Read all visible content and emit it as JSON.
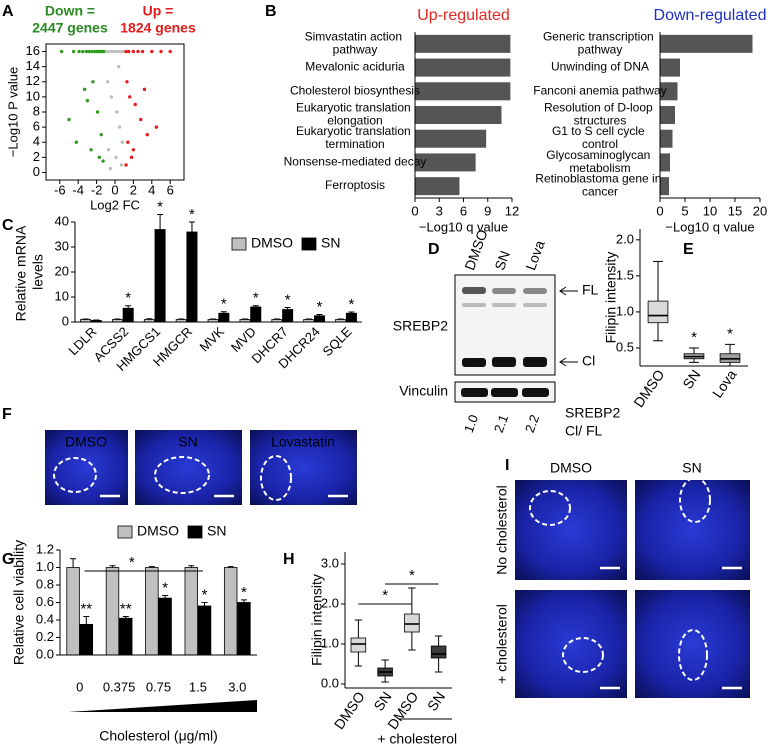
{
  "panel_labels": [
    "A",
    "B",
    "C",
    "D",
    "E",
    "F",
    "G",
    "H",
    "I"
  ],
  "chart_data": [
    {
      "type": "scatter",
      "xlabel": "Log2 FC",
      "ylabel": "−Log10 P value",
      "xlim": [
        -7.5,
        7.5
      ],
      "ylim": [
        -1,
        17
      ],
      "xticks": [
        -6,
        -4,
        -2,
        0,
        2,
        4,
        6
      ],
      "yticks": [
        0,
        2,
        4,
        6,
        8,
        10,
        12,
        14,
        16
      ],
      "annotations": [
        {
          "text": "Down =",
          "color": "#2a8a22"
        },
        {
          "text": "2447 genes",
          "color": "#2a8a22"
        },
        {
          "text": "Up =",
          "color": "#e31a1c"
        },
        {
          "text": "1824 genes",
          "color": "#e31a1c"
        }
      ],
      "series": [
        {
          "color": "#2e9a1f",
          "x": [
            -5.8,
            -4.5,
            -3.9,
            -3.5,
            -3.1,
            -2.8,
            -2.5,
            -2.2,
            -2.0,
            -1.8,
            -1.6,
            -1.4,
            -1.3,
            -1.2,
            -3.0,
            -2.4,
            -1.9,
            -1.5,
            -4.2,
            -2.6,
            -1.7,
            -1.3,
            -5.0,
            -3.3
          ],
          "y": [
            16,
            16,
            16,
            16,
            16,
            16,
            16,
            16,
            16,
            16,
            16,
            16,
            16,
            16,
            9.5,
            12,
            8,
            5,
            4,
            3,
            2,
            1.5,
            7,
            11
          ]
        },
        {
          "color": "#bdbdbd",
          "x": [
            -0.9,
            -0.6,
            -0.3,
            0,
            0.3,
            0.6,
            0.9,
            -0.8,
            -0.4,
            0.2,
            0.5,
            0.8,
            -0.7,
            0.1,
            0.7,
            -0.5,
            0.4
          ],
          "y": [
            16,
            16,
            16,
            16,
            16,
            16,
            16,
            12,
            10,
            8,
            6,
            4,
            3,
            2,
            1,
            0.5,
            14
          ]
        },
        {
          "color": "#e41a1c",
          "x": [
            1.2,
            1.5,
            2,
            2.5,
            3,
            4,
            5,
            6,
            1.3,
            1.6,
            2.2,
            2.8,
            3.5,
            1.4,
            2.0,
            4.5,
            1.8,
            1.2,
            3.2
          ],
          "y": [
            16,
            16,
            16,
            16,
            16,
            16,
            16,
            16,
            12,
            10,
            9,
            7,
            5,
            4,
            3,
            6,
            2,
            1,
            11
          ]
        }
      ]
    },
    {
      "type": "hbar",
      "title": "Up-regulated",
      "title_color": "#e8251f",
      "xlabel": "−Log10 q value",
      "color": "#555555",
      "categories": [
        "Simvastatin action pathway",
        "Mevalonic aciduria",
        "Cholesterol biosynthesis",
        "Eukaryotic translation elongation",
        "Eukaryotic translation termination",
        "Nonsense-mediated decay",
        "Ferroptosis"
      ],
      "values": [
        11.8,
        11.8,
        11.8,
        10.7,
        8.8,
        7.5,
        5.5
      ],
      "xlim": [
        0,
        12
      ],
      "xticks": [
        0,
        3,
        6,
        9,
        12
      ]
    },
    {
      "type": "hbar",
      "title": "Down-regulated",
      "title_color": "#1f2fbf",
      "xlabel": "−Log10 q value",
      "color": "#555555",
      "categories": [
        "Generic transcription pathway",
        "Unwinding of DNA",
        "Fanconi anemia pathway",
        "Resolution of D-loop structures",
        "G1 to S cell cycle control",
        "Glycosaminoglycan metabolism",
        "Retinoblastoma gene in cancer"
      ],
      "values": [
        18.5,
        4,
        3.5,
        3,
        2.5,
        2,
        1.8
      ],
      "xlim": [
        0,
        20
      ],
      "xticks": [
        0,
        5,
        10,
        15,
        20
      ]
    },
    {
      "type": "bar",
      "ylabel": "Relative mRNA levels",
      "legend": "upper right",
      "categories": [
        "LDLR",
        "ACSS2",
        "HMGCS1",
        "HMGCR",
        "MVK",
        "MVD",
        "DHCR7",
        "DHCR24",
        "SQLE"
      ],
      "ylim": [
        0,
        40
      ],
      "yticks": [
        0,
        10,
        20,
        30,
        40
      ],
      "series": [
        {
          "name": "DMSO",
          "color": "#c0c0c0",
          "values": [
            1,
            1,
            1,
            1,
            1,
            1,
            1,
            1,
            1
          ],
          "errors": [
            0.2,
            0.2,
            0.3,
            0.2,
            0.2,
            0.2,
            0.2,
            0.2,
            0.2
          ]
        },
        {
          "name": "SN",
          "color": "#000000",
          "values": [
            0.6,
            5.5,
            37,
            36,
            3.5,
            6,
            5,
            2.5,
            3.5
          ],
          "errors": [
            0.2,
            1,
            6,
            4,
            0.6,
            0.5,
            0.8,
            0.5,
            0.5
          ],
          "annotations": [
            null,
            "*",
            "*",
            "*",
            "*",
            "*",
            "*",
            "*",
            "*"
          ]
        }
      ]
    },
    {
      "type": "box",
      "ylabel": "Filipin intensity",
      "categories": [
        "DMSO",
        "SN",
        "Lova"
      ],
      "ylim": [
        0.25,
        2.15
      ],
      "yticks": [
        0.5,
        {
          "value": 1,
          "label": "1.0"
        },
        1.5,
        {
          "value": 2,
          "label": "2.0"
        }
      ],
      "colors": [
        "#d9d9d9",
        "#9e9e9e",
        "#9e9e9e"
      ],
      "stats": [
        {
          "low": 0.6,
          "q1": 0.85,
          "median": 0.95,
          "q3": 1.15,
          "high": 1.7
        },
        {
          "low": 0.3,
          "q1": 0.35,
          "median": 0.38,
          "q3": 0.42,
          "high": 0.5
        },
        {
          "low": 0.25,
          "q1": 0.3,
          "median": 0.35,
          "q3": 0.42,
          "high": 0.55
        }
      ],
      "annotations": [
        null,
        "*",
        "*"
      ]
    },
    {
      "type": "bar",
      "ylabel": "Relative cell viability",
      "xlabel": "Cholesterol (μg/ml)",
      "legend": "top",
      "categories": [
        "0",
        "0.375",
        "0.75",
        "1.5",
        "3.0"
      ],
      "ylim": [
        0,
        1.2
      ],
      "yticks": [
        {
          "value": 0,
          "label": "0.0"
        },
        0.2,
        0.4,
        0.6,
        0.8,
        {
          "value": 1,
          "label": "1.0"
        },
        1.2
      ],
      "series": [
        {
          "name": "DMSO",
          "color": "#c0c0c0",
          "values": [
            1.0,
            1.0,
            1.0,
            1.0,
            1.0
          ],
          "errors": [
            0.1,
            0.02,
            0.01,
            0.02,
            0.01
          ]
        },
        {
          "name": "SN",
          "color": "#000000",
          "values": [
            0.35,
            0.42,
            0.65,
            0.56,
            0.6
          ],
          "errors": [
            0.09,
            0.02,
            0.03,
            0.04,
            0.03
          ],
          "annotations": [
            "**",
            "**",
            "*",
            "*",
            "*"
          ]
        }
      ],
      "bracket_label": "*"
    },
    {
      "type": "box",
      "ylabel": "Filipin intensity",
      "categories": [
        "DMSO",
        "SN",
        "DMSO",
        "SN"
      ],
      "group_label": "+ cholesterol",
      "ylim": [
        -0.1,
        3.3
      ],
      "yticks": [
        {
          "value": 0,
          "label": "0.0"
        },
        {
          "value": 1,
          "label": "1.0"
        },
        {
          "value": 2,
          "label": "2.0"
        },
        {
          "value": 3,
          "label": "3.0"
        }
      ],
      "colors": [
        "#d9d9d9",
        "#3a3a3a",
        "#d9d9d9",
        "#3a3a3a"
      ],
      "stats": [
        {
          "low": 0.45,
          "q1": 0.8,
          "median": 1.0,
          "q3": 1.15,
          "high": 1.6
        },
        {
          "low": 0.05,
          "q1": 0.2,
          "median": 0.3,
          "q3": 0.4,
          "high": 0.6
        },
        {
          "low": 0.85,
          "q1": 1.3,
          "median": 1.5,
          "q3": 1.75,
          "high": 2.4
        },
        {
          "low": 0.3,
          "q1": 0.65,
          "median": 0.75,
          "q3": 0.95,
          "high": 1.2
        }
      ],
      "brackets": [
        "*",
        "*"
      ]
    }
  ],
  "blot": {
    "lanes": [
      "DMSO",
      "SN",
      "Lova"
    ],
    "target": "SREBP2",
    "bands": [
      "FL",
      "Cl"
    ],
    "loading": "Vinculin",
    "ratios": [
      "1.0",
      "2.1",
      "2.2"
    ],
    "ratio_label": [
      "SREBP2",
      "Cl/ FL"
    ]
  },
  "figure_F": {
    "labels": [
      "DMSO",
      "SN",
      "Lovastatin"
    ]
  },
  "figure_I": {
    "columns": [
      "DMSO",
      "SN"
    ],
    "rows": [
      "No cholesterol",
      "+ cholesterol"
    ]
  }
}
